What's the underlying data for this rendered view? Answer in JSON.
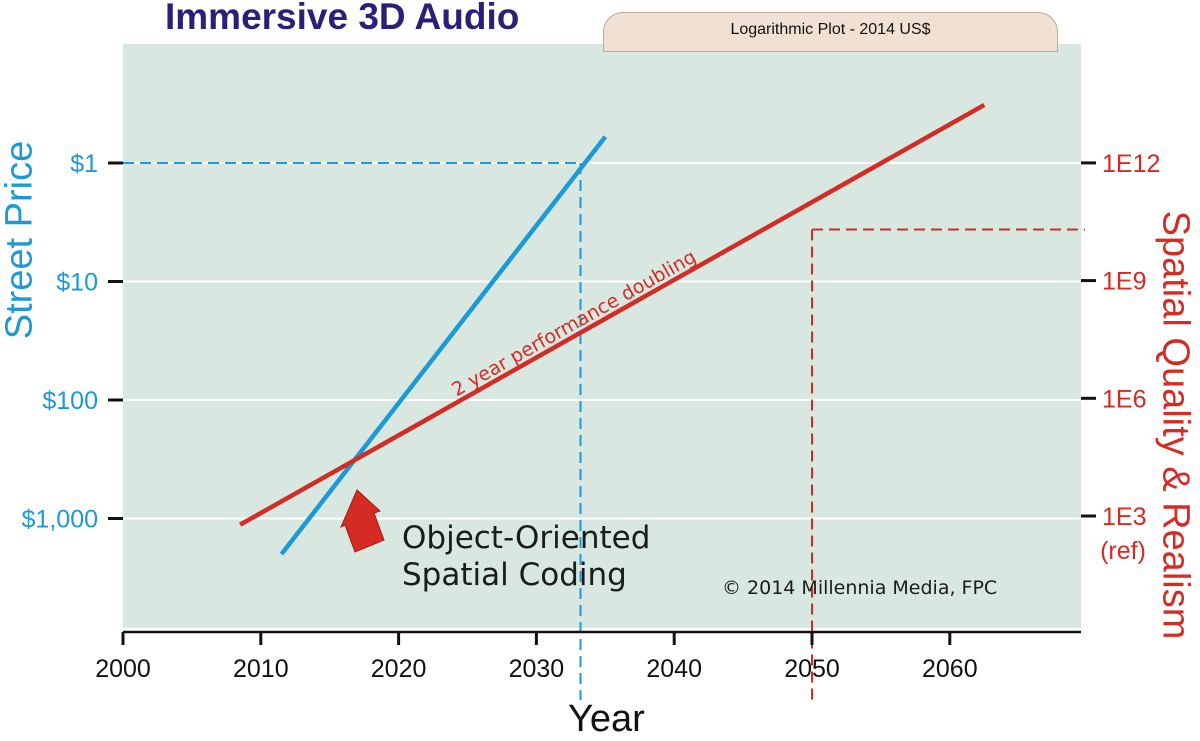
{
  "chart_data": {
    "type": "line",
    "title": "Immersive 3D Audio",
    "subtitle": "Logarithmic Plot - 2014 US$",
    "xlabel": "Year",
    "ylabel_left": "Street Price",
    "ylabel_right": "Spatial Quality & Realism",
    "xlim": [
      2000,
      2069
    ],
    "x_ticks": [
      2000,
      2010,
      2020,
      2030,
      2040,
      2050,
      2060
    ],
    "x_tick_labels": [
      "2000",
      "2010",
      "2020",
      "2030",
      "2040",
      "2050",
      "2060"
    ],
    "left_axis": {
      "scale": "log10_price_reversed",
      "ticks": [
        1,
        10,
        100,
        1000
      ],
      "tick_labels": [
        "$1",
        "$10",
        "$100",
        "$1,000"
      ]
    },
    "right_axis": {
      "scale": "log10",
      "ticks": [
        1000,
        1000000,
        1000000000,
        1000000000000
      ],
      "tick_labels": [
        "1E3",
        "1E6",
        "1E9",
        "1E12"
      ],
      "ref_note": "(ref)"
    },
    "series": [
      {
        "name": "Street Price",
        "axis": "left",
        "color": "#1b9ad7",
        "x": [
          2011.5,
          2035.0
        ],
        "y": [
          2000,
          0.6
        ]
      },
      {
        "name": "2 year performance doubling",
        "axis": "right",
        "color": "#d42b25",
        "x": [
          2008.5,
          2062.5
        ],
        "y": [
          600,
          30000000000000
        ]
      }
    ],
    "reference_lines": [
      {
        "color": "#1b9ad7",
        "x": 2033.2,
        "y": 1,
        "axis": "left"
      },
      {
        "color": "#d42b25",
        "x": 2050.0,
        "y": 20000000000,
        "axis": "right"
      }
    ],
    "line_label": "2 year performance doubling",
    "annotation": [
      "Object-Oriented",
      "Spatial Coding"
    ],
    "credit": "© 2014 Millennia Media, FPC",
    "colors": {
      "panel": "#d8e8e1",
      "blue": "#1b9ad7",
      "red": "#d42b25",
      "title": "#2b1f7a",
      "tab": "#f0e1d4"
    }
  }
}
